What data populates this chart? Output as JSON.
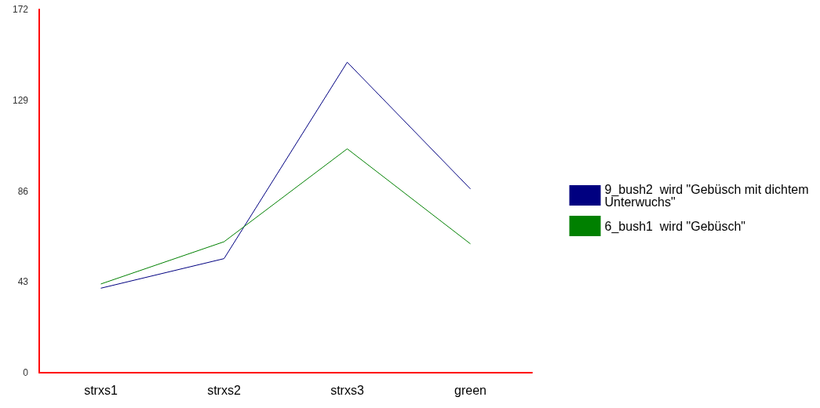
{
  "chart_data": {
    "type": "line",
    "categories": [
      "strxs1",
      "strxs2",
      "strxs3",
      "green"
    ],
    "series": [
      {
        "name": "9_bush2  wird \"Gebüsch mit dichtem Unterwuchs\"",
        "color": "#000080",
        "values": [
          40,
          54,
          147,
          87
        ]
      },
      {
        "name": "6_bush1  wird \"Gebüsch\"",
        "color": "#008000",
        "values": [
          42,
          62,
          106,
          61
        ]
      }
    ],
    "ylim": [
      0,
      172
    ],
    "yticks": [
      0,
      43,
      86,
      129,
      172
    ],
    "grid": false,
    "legend": "right",
    "marker": "none",
    "line_style": "solid"
  }
}
